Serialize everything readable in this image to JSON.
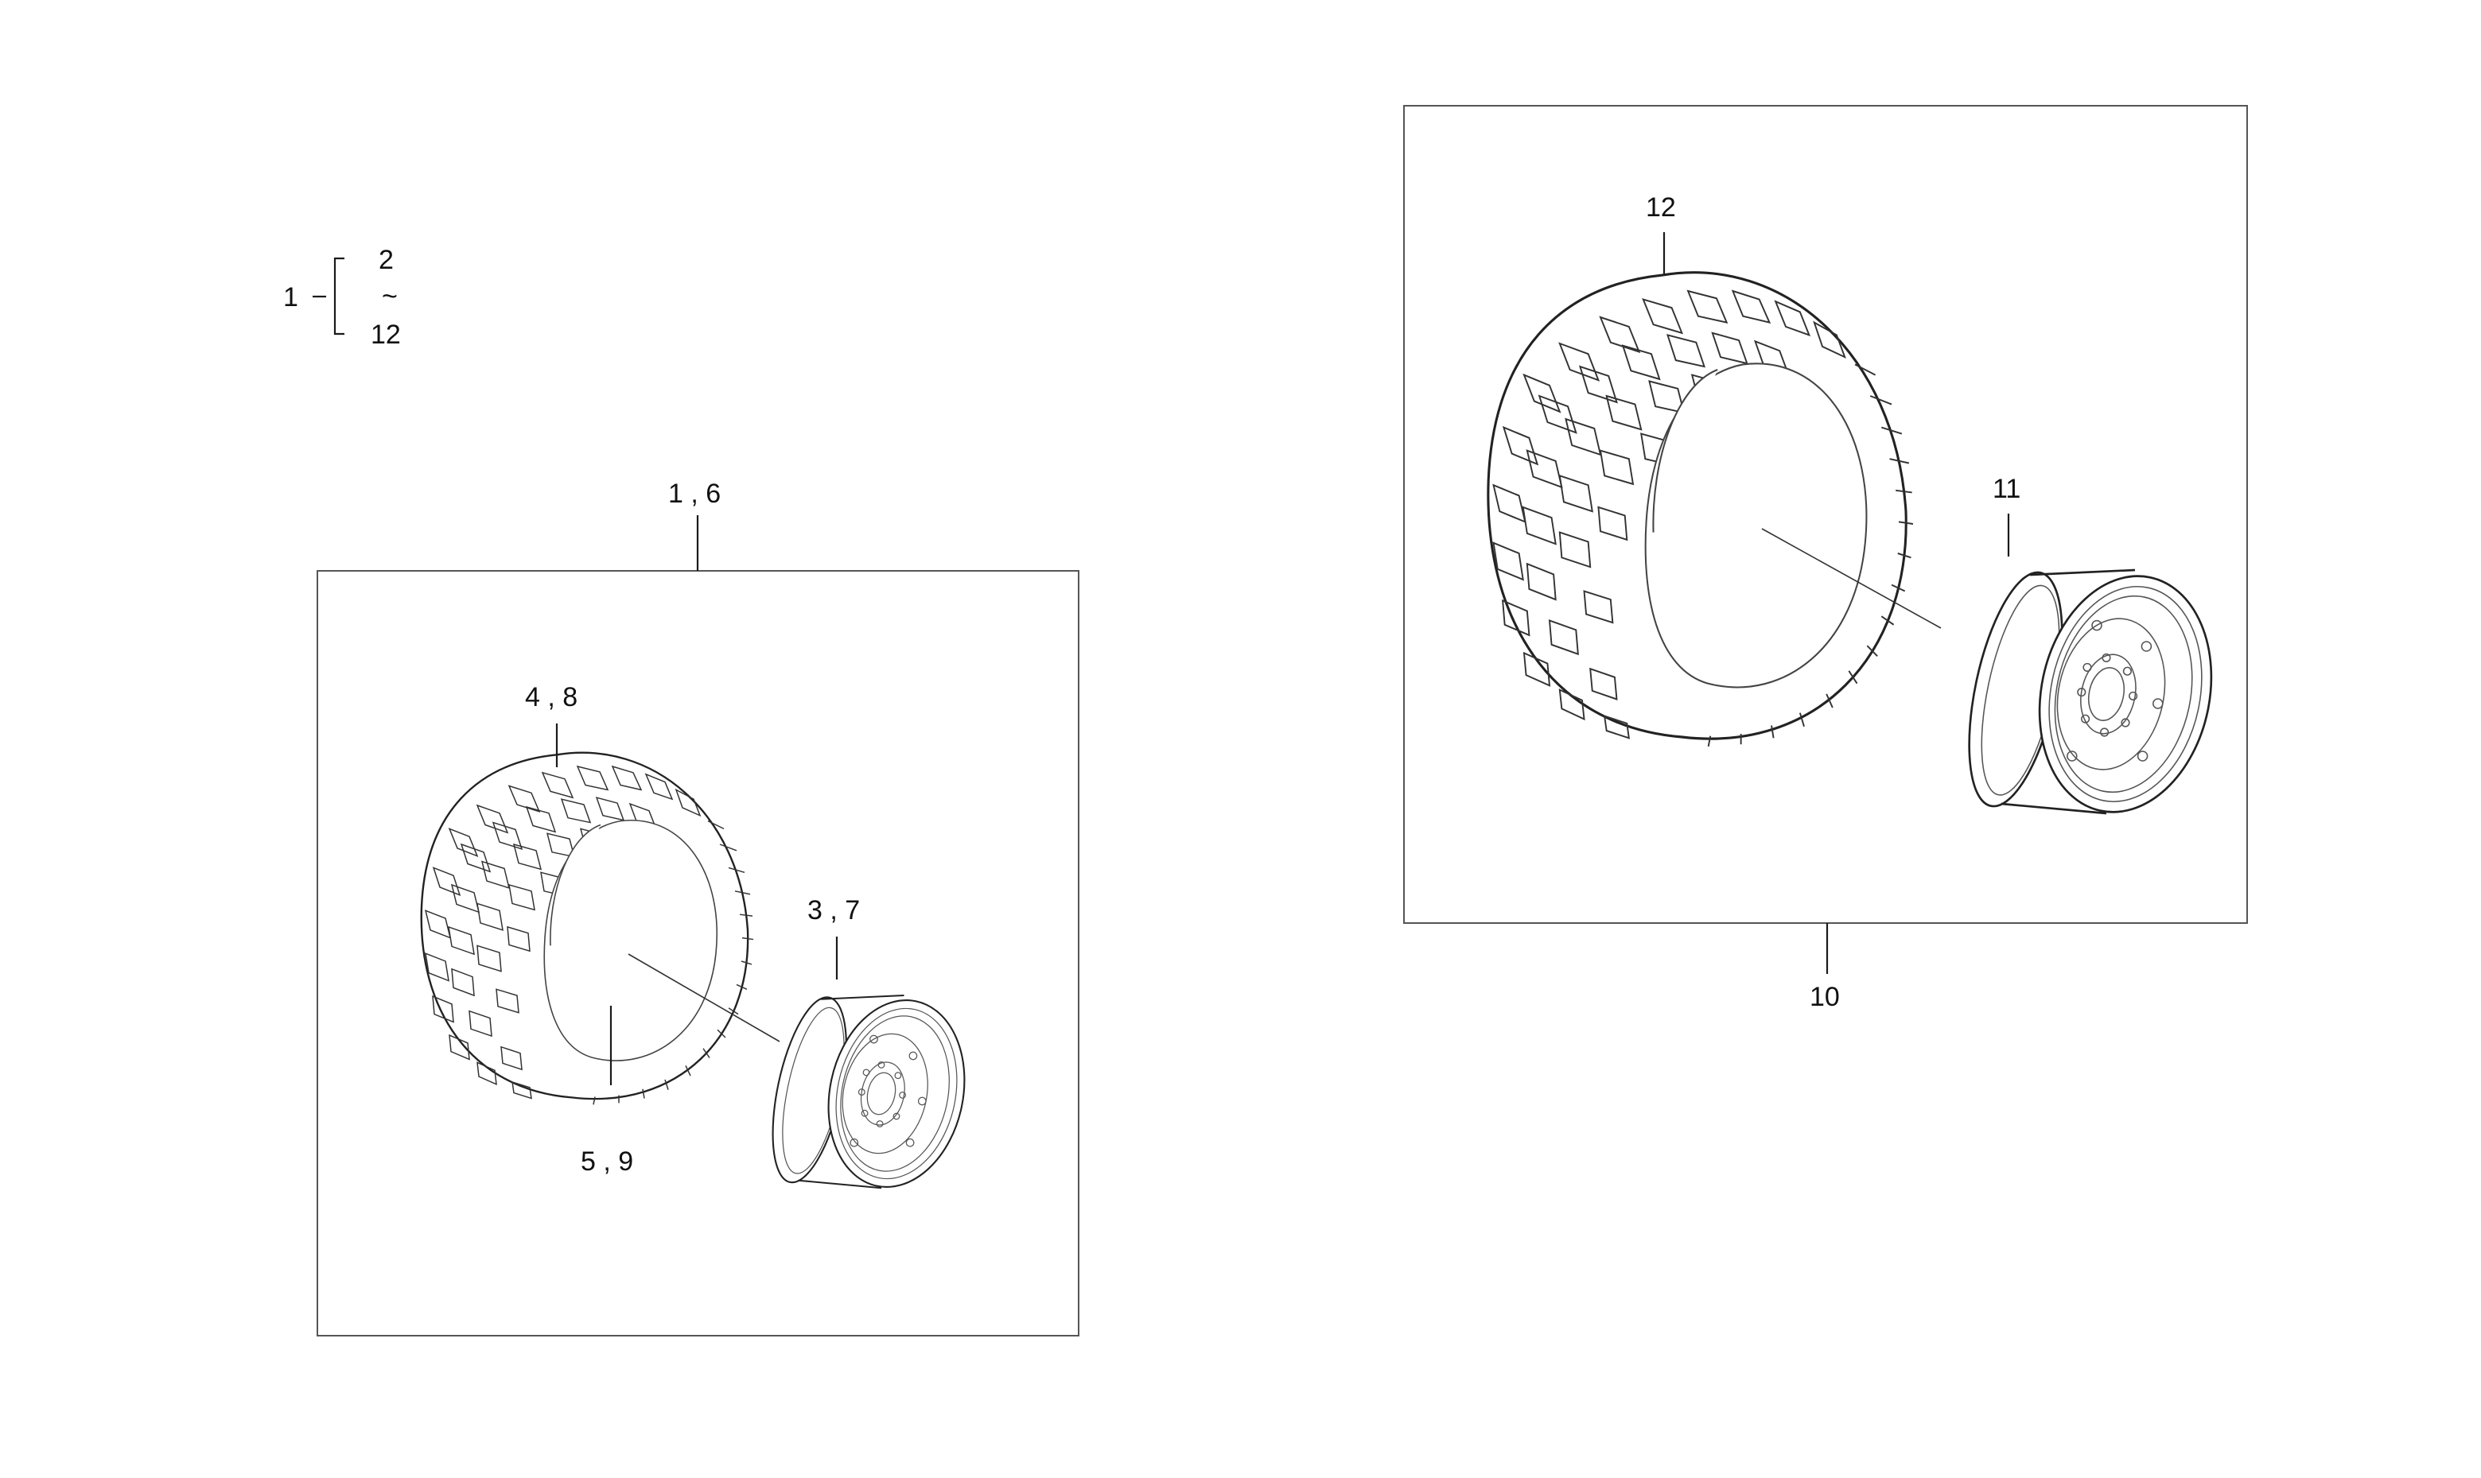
{
  "legend": {
    "parent": "1",
    "range_start": "2",
    "range_sep": "~",
    "range_end": "12"
  },
  "left_assembly": {
    "group_label": "1 , 6",
    "tire_label": "4 , 8",
    "tube_label": "5 , 9",
    "rim_label": "3 , 7"
  },
  "right_assembly": {
    "group_label": "10",
    "tire_label": "12",
    "rim_label": "11"
  }
}
